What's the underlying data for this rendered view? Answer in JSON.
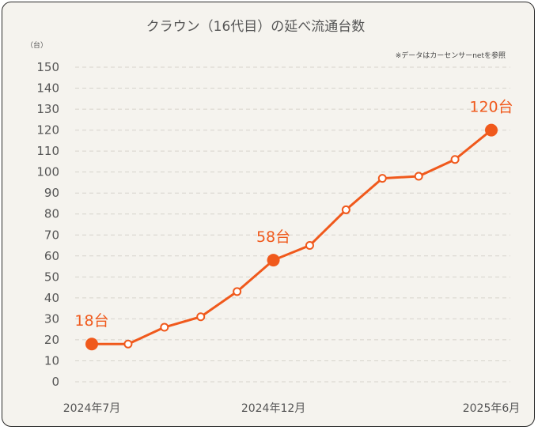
{
  "chart_data": {
    "type": "line",
    "title": "クラウン（16代目）の延べ流通台数",
    "ylabel": "（台）",
    "note": "※データはカーセンサーnetを参照",
    "ylim": [
      0,
      150
    ],
    "yticks": [
      0,
      10,
      20,
      30,
      40,
      50,
      60,
      70,
      80,
      90,
      100,
      110,
      120,
      130,
      140,
      150
    ],
    "x_tick_labels": [
      {
        "index": 0,
        "label": "2024年7月"
      },
      {
        "index": 5,
        "label": "2024年12月"
      },
      {
        "index": 11,
        "label": "2025年6月"
      }
    ],
    "series": [
      {
        "name": "延べ流通台数",
        "color": "#f0591c",
        "x": [
          "2024-07",
          "2024-08",
          "2024-09",
          "2024-10",
          "2024-11",
          "2024-12",
          "2025-01",
          "2025-02",
          "2025-03",
          "2025-04",
          "2025-05",
          "2025-06"
        ],
        "values": [
          18,
          18,
          26,
          31,
          43,
          58,
          65,
          82,
          97,
          98,
          106,
          120
        ]
      }
    ],
    "annotations": [
      {
        "index": 0,
        "label": "18台"
      },
      {
        "index": 5,
        "label": "58台"
      },
      {
        "index": 11,
        "label": "120台"
      }
    ],
    "grid": true
  }
}
